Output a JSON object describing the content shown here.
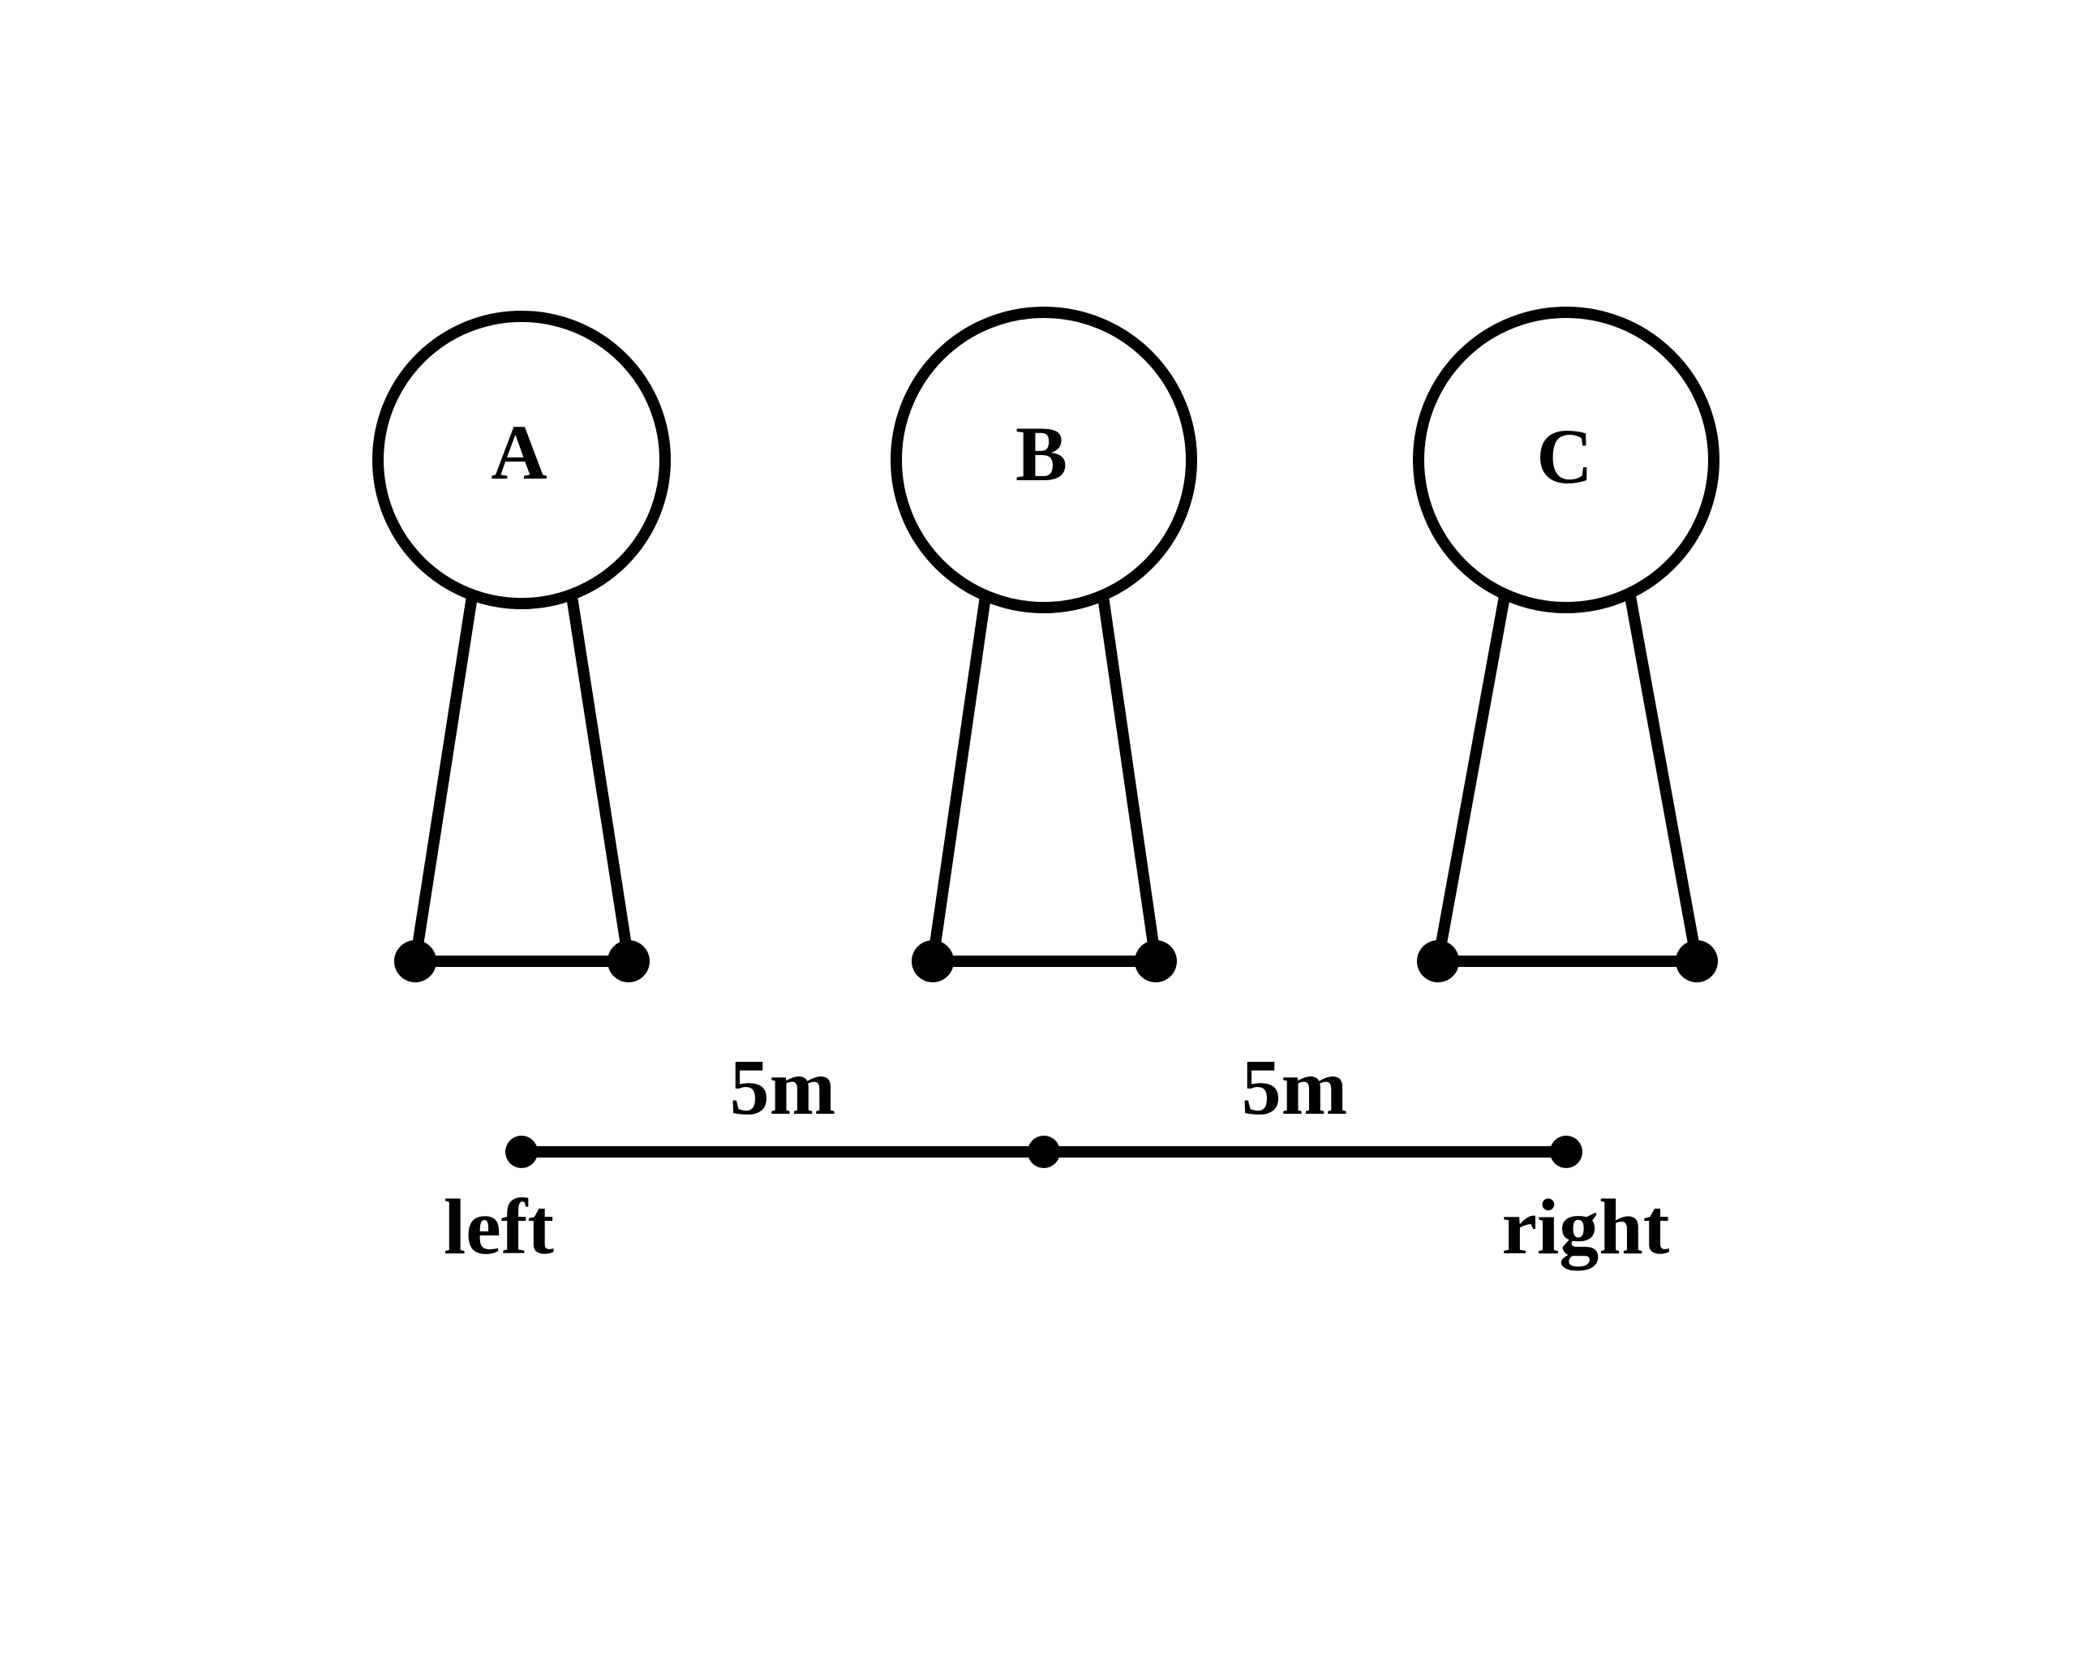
{
  "objects": [
    {
      "label": "A"
    },
    {
      "label": "B"
    },
    {
      "label": "C"
    }
  ],
  "distances": [
    {
      "label": "5m"
    },
    {
      "label": "5m"
    }
  ],
  "ends": {
    "left": "left",
    "right": "right"
  },
  "colors": {
    "ink": "#000000",
    "background": "#ffffff"
  }
}
